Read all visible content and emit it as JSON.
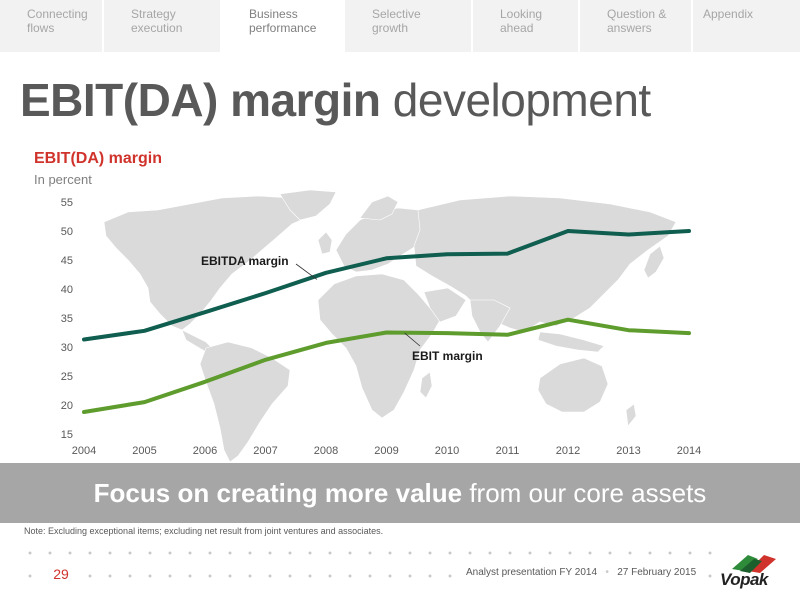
{
  "nav": {
    "tabs": [
      {
        "label": "Connecting\nflows",
        "active": false
      },
      {
        "label": "Strategy\nexecution",
        "active": false
      },
      {
        "label": "Business\nperformance",
        "active": true
      },
      {
        "label": "Selective\ngrowth",
        "active": false
      },
      {
        "label": "Looking\nahead",
        "active": false
      },
      {
        "label": "Question &\nanswers",
        "active": false
      },
      {
        "label": "Appendix",
        "active": false
      }
    ]
  },
  "page_title_bold": "EBIT(DA) margin",
  "page_title_light": " development",
  "chart_title": "EBIT(DA) margin",
  "chart_subtitle": "In percent",
  "chart_data": {
    "type": "line",
    "title": "EBIT(DA) margin",
    "ylabel": "In percent",
    "xlabel": "",
    "x": [
      "2004",
      "2005",
      "2006",
      "2007",
      "2008",
      "2009",
      "2010",
      "2011",
      "2012",
      "2013",
      "2014"
    ],
    "ylim": [
      15,
      55
    ],
    "yticks": [
      15,
      20,
      25,
      30,
      35,
      40,
      45,
      50,
      55
    ],
    "grid": false,
    "series": [
      {
        "name": "EBITDA margin",
        "color": "#0f5e4f",
        "values": [
          31.3,
          32.8,
          36.0,
          39.3,
          42.8,
          45.3,
          46.0,
          46.1,
          50.0,
          49.4,
          50.0
        ]
      },
      {
        "name": "EBIT margin",
        "color": "#5e9c2d",
        "values": [
          18.8,
          20.5,
          24.0,
          27.8,
          30.7,
          32.5,
          32.4,
          32.1,
          34.7,
          32.9,
          32.4
        ]
      }
    ]
  },
  "banner_bold": "Focus on creating more value",
  "banner_light": " from our core assets",
  "note": "Note: Excluding exceptional items; excluding net result from joint ventures and associates.",
  "footer": {
    "page_number": "29",
    "presentation": "Analyst presentation FY 2014",
    "date": "27 February 2015",
    "separator": "•",
    "logo_text": "Vopak"
  },
  "colors": {
    "accent_red": "#d0332b",
    "ebitda_green": "#0f5e4f",
    "ebit_green": "#5e9c2d",
    "banner_grey": "#a6a6a6"
  }
}
